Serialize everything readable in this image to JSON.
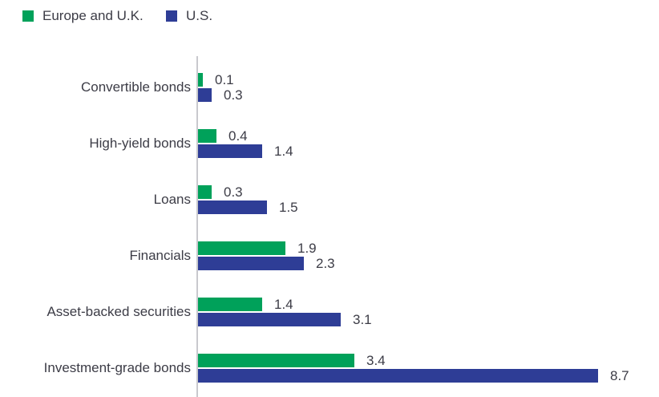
{
  "legend": {
    "items": [
      {
        "label": "Europe and U.K.",
        "color": "#00a15a"
      },
      {
        "label": "U.S.",
        "color": "#2e3d96"
      }
    ]
  },
  "chart_data": {
    "type": "bar",
    "orientation": "horizontal",
    "categories": [
      "Convertible bonds",
      "High-yield bonds",
      "Loans",
      "Financials",
      "Asset-backed securities",
      "Investment-grade bonds"
    ],
    "series": [
      {
        "name": "Europe and U.K.",
        "color": "#00a15a",
        "values": [
          0.1,
          0.4,
          0.3,
          1.9,
          1.4,
          3.4
        ]
      },
      {
        "name": "U.S.",
        "color": "#2e3d96",
        "values": [
          0.3,
          1.4,
          1.5,
          2.3,
          3.1,
          8.7
        ]
      }
    ],
    "value_labels": [
      "0.1",
      "0.3",
      "0.4",
      "1.4",
      "0.3",
      "1.5",
      "1.9",
      "2.3",
      "1.4",
      "3.1",
      "3.4",
      "8.7"
    ],
    "xlim": [
      0,
      9
    ],
    "grid": false,
    "legend_position": "top-left",
    "title": "",
    "xlabel": "",
    "ylabel": ""
  },
  "colors": {
    "text": "#3c3c46",
    "axis": "#c9c9ce",
    "background": "#ffffff"
  }
}
